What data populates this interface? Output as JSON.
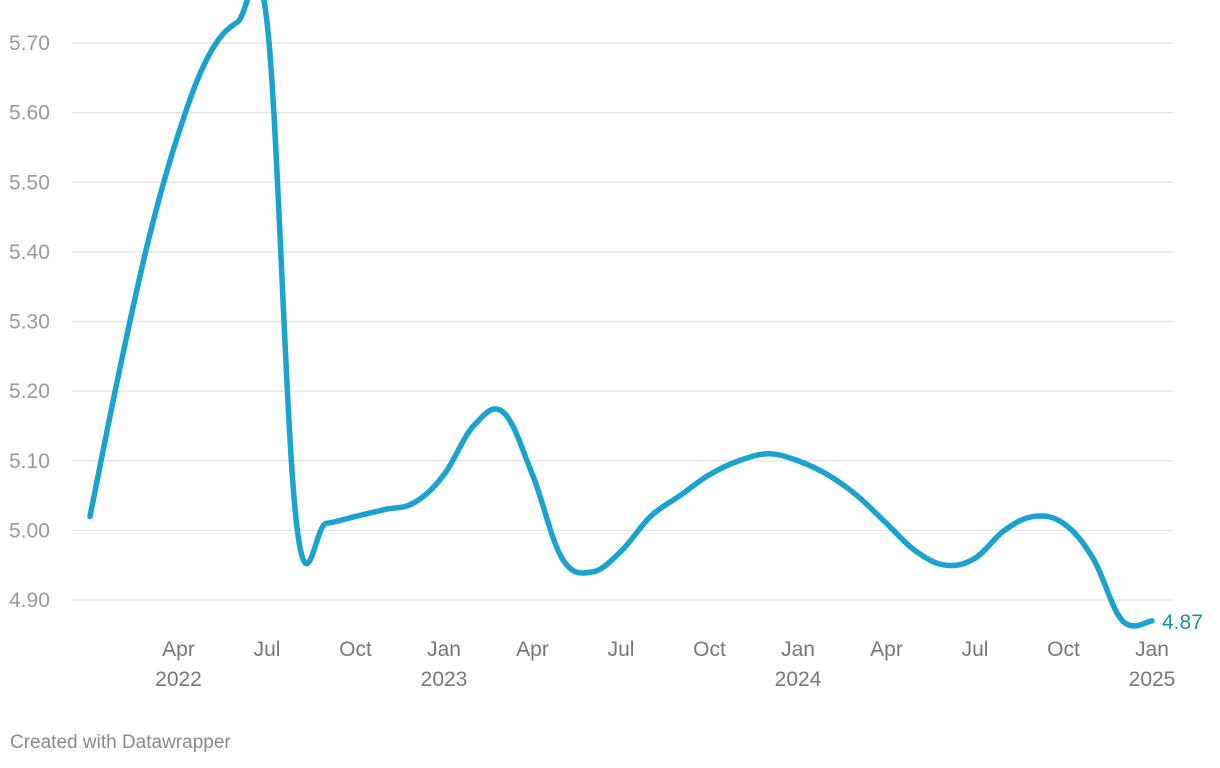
{
  "chart_data": {
    "type": "line",
    "title": "",
    "xlabel": "",
    "ylabel": "",
    "x": [
      "2022-01",
      "2022-02",
      "2022-03",
      "2022-04",
      "2022-05",
      "2022-06",
      "2022-07",
      "2022-08",
      "2022-09",
      "2022-10",
      "2022-11",
      "2022-12",
      "2023-01",
      "2023-02",
      "2023-03",
      "2023-04",
      "2023-05",
      "2023-06",
      "2023-07",
      "2023-08",
      "2023-09",
      "2023-10",
      "2023-11",
      "2023-12",
      "2024-01",
      "2024-02",
      "2024-03",
      "2024-04",
      "2024-05",
      "2024-06",
      "2024-07",
      "2024-08",
      "2024-09",
      "2024-10",
      "2024-11",
      "2024-12",
      "2025-01"
    ],
    "series": [
      {
        "color": "#1ba3cf",
        "values": [
          5.02,
          5.23,
          5.42,
          5.57,
          5.68,
          5.73,
          5.73,
          5.01,
          5.01,
          5.02,
          5.03,
          5.04,
          5.08,
          5.15,
          5.17,
          5.08,
          4.96,
          4.94,
          4.97,
          5.02,
          5.05,
          5.08,
          5.1,
          5.11,
          5.1,
          5.08,
          5.05,
          5.01,
          4.97,
          4.95,
          4.96,
          5.0,
          5.02,
          5.01,
          4.96,
          4.87,
          4.87
        ]
      }
    ],
    "ylim": [
      4.88,
      5.73
    ],
    "yticks": [
      {
        "value": 4.9,
        "label": "4.90"
      },
      {
        "value": 5.0,
        "label": "5.00"
      },
      {
        "value": 5.1,
        "label": "5.10"
      },
      {
        "value": 5.2,
        "label": "5.20"
      },
      {
        "value": 5.3,
        "label": "5.30"
      },
      {
        "value": 5.4,
        "label": "5.40"
      },
      {
        "value": 5.5,
        "label": "5.50"
      },
      {
        "value": 5.6,
        "label": "5.60"
      },
      {
        "value": 5.7,
        "label": "5.70"
      }
    ],
    "xticks": [
      {
        "x": "2022-04",
        "label": "Apr",
        "year": "2022"
      },
      {
        "x": "2022-07",
        "label": "Jul",
        "year": ""
      },
      {
        "x": "2022-10",
        "label": "Oct",
        "year": ""
      },
      {
        "x": "2023-01",
        "label": "Jan",
        "year": "2023"
      },
      {
        "x": "2023-04",
        "label": "Apr",
        "year": ""
      },
      {
        "x": "2023-07",
        "label": "Jul",
        "year": ""
      },
      {
        "x": "2023-10",
        "label": "Oct",
        "year": ""
      },
      {
        "x": "2024-01",
        "label": "Jan",
        "year": "2024"
      },
      {
        "x": "2024-04",
        "label": "Apr",
        "year": ""
      },
      {
        "x": "2024-07",
        "label": "Jul",
        "year": ""
      },
      {
        "x": "2024-10",
        "label": "Oct",
        "year": ""
      },
      {
        "x": "2025-01",
        "label": "Jan",
        "year": "2025"
      }
    ],
    "end_label": {
      "text": "4.87",
      "color": "#1b8fb3"
    },
    "grid": true,
    "legend": "none"
  },
  "footer": {
    "credit": "Created with Datawrapper"
  }
}
